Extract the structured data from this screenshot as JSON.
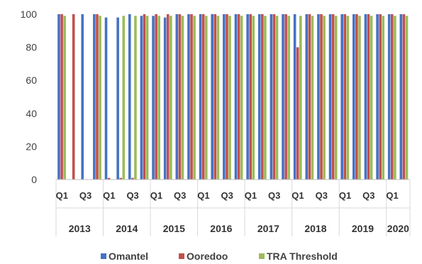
{
  "chart_data": {
    "type": "bar",
    "title": "",
    "xlabel": "",
    "ylabel": "",
    "ylim": [
      0,
      100
    ],
    "yticks": [
      0,
      20,
      40,
      60,
      80,
      100
    ],
    "grid": false,
    "legend_position": "bottom",
    "years": [
      "2013",
      "2014",
      "2015",
      "2016",
      "2017",
      "2018",
      "2019",
      "2020"
    ],
    "quarter_tick_labels": [
      "Q1",
      "Q3",
      "Q1",
      "Q3",
      "Q1",
      "Q3",
      "Q1",
      "Q3",
      "Q1",
      "Q3",
      "Q1",
      "Q3",
      "Q1",
      "Q3",
      "Q1"
    ],
    "categories": [
      "2013 Q1",
      "2013 Q2",
      "2013 Q3",
      "2013 Q4",
      "2014 Q1",
      "2014 Q2",
      "2014 Q3",
      "2014 Q4",
      "2015 Q1",
      "2015 Q2",
      "2015 Q3",
      "2015 Q4",
      "2016 Q1",
      "2016 Q2",
      "2016 Q3",
      "2016 Q4",
      "2017 Q1",
      "2017 Q2",
      "2017 Q3",
      "2017 Q4",
      "2018 Q1",
      "2018 Q2",
      "2018 Q3",
      "2018 Q4",
      "2019 Q1",
      "2019 Q2",
      "2019 Q3",
      "2019 Q4",
      "2020 Q1",
      "2020 Q2"
    ],
    "series": [
      {
        "name": "Omantel",
        "color": "#4472C4",
        "values": [
          100,
          0,
          100,
          100,
          98,
          98,
          100,
          99,
          99,
          98,
          100,
          100,
          100,
          100,
          100,
          100,
          100,
          100,
          100,
          100,
          100,
          100,
          100,
          100,
          100,
          100,
          100,
          100,
          100,
          100
        ]
      },
      {
        "name": "Ooredoo",
        "color": "#C0504D",
        "values": [
          100,
          100,
          0,
          100,
          1,
          1,
          1,
          100,
          100,
          100,
          100,
          100,
          100,
          100,
          100,
          100,
          100,
          100,
          100,
          100,
          80,
          100,
          100,
          100,
          100,
          100,
          100,
          100,
          100,
          100
        ]
      },
      {
        "name": "TRA Threshold",
        "color": "#9BBB59",
        "values": [
          99,
          0,
          0,
          99,
          0,
          99,
          99,
          99,
          99,
          99,
          99,
          99,
          99,
          99,
          99,
          99,
          99,
          99,
          99,
          99,
          99,
          99,
          99,
          99,
          99,
          99,
          99,
          99,
          99,
          99
        ]
      }
    ]
  }
}
